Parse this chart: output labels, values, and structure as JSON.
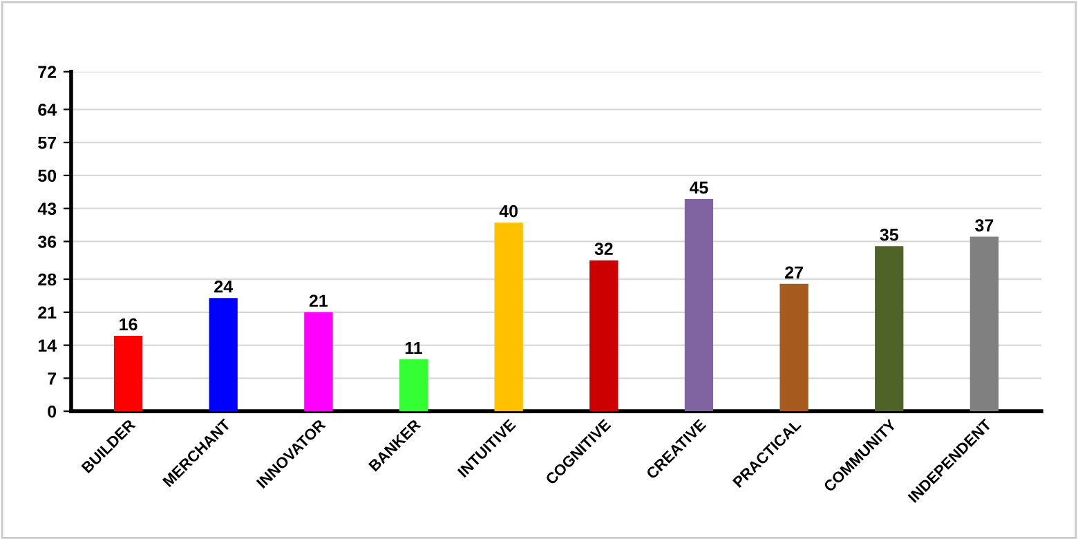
{
  "chart_data": {
    "type": "bar",
    "categories": [
      "BUILDER",
      "MERCHANT",
      "INNOVATOR",
      "BANKER",
      "INTUITIVE",
      "COGNITIVE",
      "CREATIVE",
      "PRACTICAL",
      "COMMUNITY",
      "INDEPENDENT"
    ],
    "values": [
      16,
      24,
      21,
      11,
      40,
      32,
      45,
      27,
      35,
      37
    ],
    "colors": [
      "#ff0000",
      "#0000ff",
      "#ff00ff",
      "#33ff33",
      "#ffc000",
      "#cc0000",
      "#8064a2",
      "#a65a1e",
      "#4f6228",
      "#808080"
    ],
    "ylim": [
      0,
      72
    ],
    "yticks": [
      0,
      7,
      14,
      21,
      28,
      36,
      43,
      50,
      57,
      64,
      72
    ],
    "grid": "y",
    "data_labels": true,
    "legend": false
  }
}
